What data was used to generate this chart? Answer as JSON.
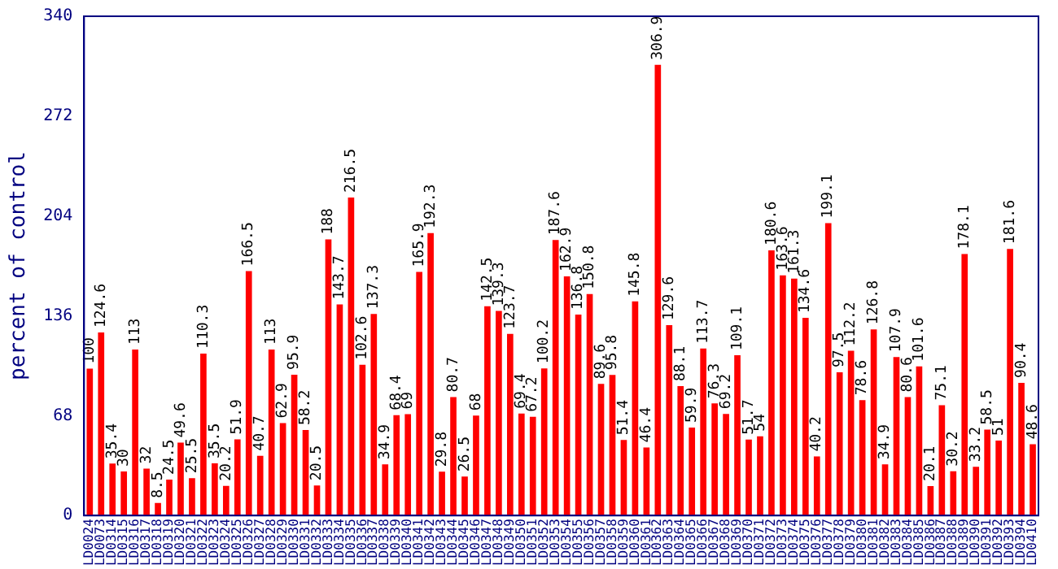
{
  "chart_data": {
    "type": "bar",
    "ylabel": "percent of control",
    "categories": [
      "LD0024",
      "LD0073",
      "LD0314",
      "LD0315",
      "LD0316",
      "LD0317",
      "LD0318",
      "LD0319",
      "LD0320",
      "LD0321",
      "LD0322",
      "LD0323",
      "LD0324",
      "LD0325",
      "LD0326",
      "LD0327",
      "LD0328",
      "LD0329",
      "LD0330",
      "LD0331",
      "LD0332",
      "LD0333",
      "LD0334",
      "LD0335",
      "LD0336",
      "LD0337",
      "LD0338",
      "LD0339",
      "LD0340",
      "LD0341",
      "LD0342",
      "LD0343",
      "LD0344",
      "LD0345",
      "LD0346",
      "LD0347",
      "LD0348",
      "LD0349",
      "LD0350",
      "LD0351",
      "LD0352",
      "LD0353",
      "LD0354",
      "LD0355",
      "LD0356",
      "LD0357",
      "LD0358",
      "LD0359",
      "LD0360",
      "LD0361",
      "LD0362",
      "LD0363",
      "LD0364",
      "LD0365",
      "LD0366",
      "LD0367",
      "LD0368",
      "LD0369",
      "LD0370",
      "LD0371",
      "LD0372",
      "LD0373",
      "LD0374",
      "LD0375",
      "LD0376",
      "LD0377",
      "LD0378",
      "LD0379",
      "LD0380",
      "LD0381",
      "LD0382",
      "LD0383",
      "LD0384",
      "LD0385",
      "LD0386",
      "LD0387",
      "LD0388",
      "LD0389",
      "LD0390",
      "LD0391",
      "LD0392",
      "LD0393",
      "LD0394",
      "LD0410"
    ],
    "values": [
      100,
      124.6,
      35.4,
      30,
      113,
      32,
      8.5,
      24.5,
      49.6,
      25.5,
      110.3,
      35.5,
      20.2,
      51.9,
      166.5,
      40.7,
      113,
      62.9,
      95.9,
      58.2,
      20.5,
      188,
      143.7,
      216.5,
      102.6,
      137.3,
      34.9,
      68.4,
      69,
      165.9,
      192.3,
      29.8,
      80.7,
      26.5,
      68,
      142.5,
      139.3,
      123.7,
      69.4,
      67.2,
      100.2,
      187.6,
      162.9,
      136.8,
      150.8,
      89.6,
      95.8,
      51.4,
      145.8,
      46.4,
      306.9,
      129.6,
      88.1,
      59.9,
      113.7,
      76.3,
      69.2,
      109.1,
      51.7,
      54,
      180.6,
      163.6,
      161.3,
      134.6,
      40.2,
      199.1,
      97.5,
      112.2,
      78.6,
      126.8,
      34.9,
      107.9,
      80.6,
      101.6,
      20.1,
      75.1,
      30.2,
      178.1,
      33.2,
      58.5,
      51,
      181.6,
      90.4,
      48.6
    ],
    "color": "#ff0000",
    "ylim": [
      0,
      340
    ],
    "yticks": [
      0,
      68,
      136,
      204,
      272,
      340
    ],
    "data_labels": true,
    "legend": false,
    "grid": false
  }
}
